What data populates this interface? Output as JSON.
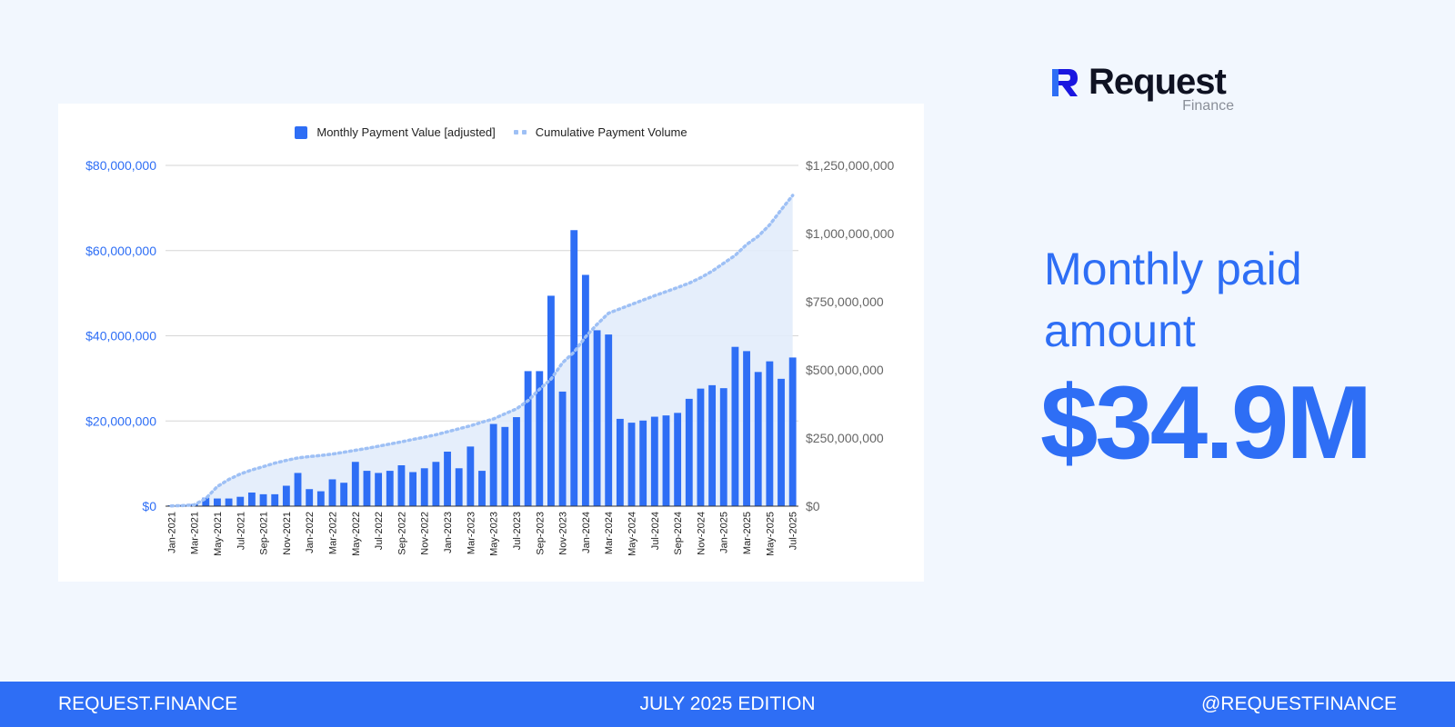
{
  "brand": {
    "name": "Request",
    "sub": "Finance",
    "colors": {
      "accent": "#2e6ef5",
      "accent_light": "#9ec0f5",
      "fill": "#e2ecfb",
      "logo_dark": "#1a16e0"
    }
  },
  "headline": {
    "line1": "Monthly paid",
    "line2": "amount"
  },
  "big_value": "$34.9M",
  "footer": {
    "left": "REQUEST.FINANCE",
    "center": "JULY 2025  EDITION",
    "right": "@REQUESTFINANCE"
  },
  "chart_data": {
    "type": "bar",
    "legend": [
      "Monthly Payment Value [adjusted]",
      "Cumulative Payment Volume"
    ],
    "categories": [
      "Jan-2021",
      "Feb-2021",
      "Mar-2021",
      "Apr-2021",
      "May-2021",
      "Jun-2021",
      "Jul-2021",
      "Aug-2021",
      "Sep-2021",
      "Oct-2021",
      "Nov-2021",
      "Dec-2021",
      "Jan-2022",
      "Feb-2022",
      "Mar-2022",
      "Apr-2022",
      "May-2022",
      "Jun-2022",
      "Jul-2022",
      "Aug-2022",
      "Sep-2022",
      "Oct-2022",
      "Nov-2022",
      "Dec-2022",
      "Jan-2023",
      "Feb-2023",
      "Mar-2023",
      "Apr-2023",
      "May-2023",
      "Jun-2023",
      "Jul-2023",
      "Aug-2023",
      "Sep-2023",
      "Oct-2023",
      "Nov-2023",
      "Dec-2023",
      "Jan-2024",
      "Feb-2024",
      "Mar-2024",
      "Apr-2024",
      "May-2024",
      "Jun-2024",
      "Jul-2024",
      "Aug-2024",
      "Sep-2024",
      "Oct-2024",
      "Nov-2024",
      "Dec-2024",
      "Jan-2025",
      "Feb-2025",
      "Mar-2025",
      "Apr-2025",
      "May-2025",
      "Jun-2025",
      "Jul-2025"
    ],
    "tick_labels": [
      "Jan-2021",
      "Mar-2021",
      "May-2021",
      "Jul-2021",
      "Sep-2021",
      "Nov-2021",
      "Jan-2022",
      "Mar-2022",
      "May-2022",
      "Jul-2022",
      "Sep-2022",
      "Nov-2022",
      "Jan-2023",
      "Mar-2023",
      "May-2023",
      "Jul-2023",
      "Sep-2023",
      "Nov-2023",
      "Jan-2024",
      "Mar-2024",
      "May-2024",
      "Jul-2024",
      "Sep-2024",
      "Nov-2024",
      "Jan-2025",
      "Mar-2025",
      "May-2025",
      "Jul-2025"
    ],
    "series": [
      {
        "name": "Monthly Payment Value [adjusted]",
        "axis": "left",
        "values": [
          0.2,
          0.3,
          0.5,
          2.0,
          1.8,
          1.8,
          2.2,
          3.2,
          2.8,
          2.8,
          4.8,
          7.8,
          4.0,
          3.5,
          6.3,
          5.5,
          10.4,
          8.3,
          7.8,
          8.3,
          9.6,
          8.0,
          8.9,
          10.4,
          12.8,
          8.9,
          14.0,
          8.3,
          19.3,
          18.6,
          20.9,
          31.7,
          31.7,
          49.4,
          26.9,
          64.8,
          54.3,
          41.3,
          40.3,
          20.5,
          19.6,
          20.1,
          21.0,
          21.3,
          21.9,
          25.2,
          27.6,
          28.4,
          27.7,
          37.4,
          36.4,
          31.5,
          34.0,
          29.9,
          34.9
        ]
      },
      {
        "name": "Cumulative Payment Volume",
        "axis": "right",
        "values": [
          1,
          2,
          5,
          28,
          72,
          98,
          118,
          133,
          145,
          158,
          168,
          177,
          182,
          186,
          191,
          198,
          205,
          212,
          220,
          228,
          236,
          245,
          253,
          262,
          273,
          284,
          295,
          308,
          320,
          339,
          357,
          387,
          429,
          466,
          526,
          565,
          621,
          667,
          708,
          724,
          740,
          756,
          772,
          787,
          802,
          818,
          838,
          862,
          891,
          920,
          960,
          990,
          1032,
          1087,
          1140
        ]
      }
    ],
    "y_left": {
      "min": 0,
      "max": 80000000,
      "ticks": [
        "$0",
        "$20,000,000",
        "$40,000,000",
        "$60,000,000",
        "$80,000,000"
      ]
    },
    "y_right": {
      "min": 0,
      "max": 1250000000,
      "ticks": [
        "$0",
        "$250,000,000",
        "$500,000,000",
        "$750,000,000",
        "$1,000,000,000",
        "$1,250,000,000"
      ]
    },
    "units_note": "monthly values in $M, cumulative in $M",
    "grid": true,
    "legend_position": "top-center"
  }
}
